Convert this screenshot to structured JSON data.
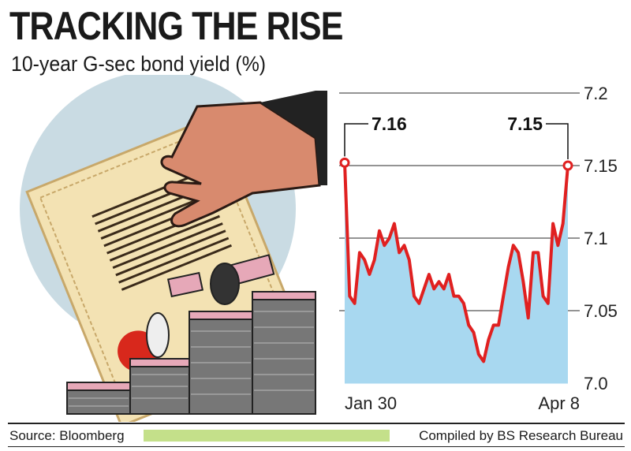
{
  "header": {
    "title": "TRACKING THE RISE",
    "subtitle": "10-year G-sec bond yield (%)"
  },
  "footer": {
    "source": "Source: Bloomberg",
    "credit": "Compiled by BS Research Bureau"
  },
  "colors": {
    "area_fill": "#a8d8f0",
    "line": "#e02020",
    "footer_bar": "#c4e08a"
  },
  "illustration": {
    "description_icon": "hand-certificate-cash-stacks-icon"
  },
  "chart_data": {
    "type": "area",
    "title": "TRACKING THE RISE",
    "subtitle": "10-year G-sec bond yield (%)",
    "xlabel": "",
    "ylabel": "",
    "x_tick_labels": [
      "Jan 30",
      "Apr 8"
    ],
    "y_ticks": [
      7.0,
      7.05,
      7.1,
      7.15,
      7.2
    ],
    "y_tick_labels": [
      "7.0",
      "7.05",
      "7.1",
      "7.15",
      "7.2"
    ],
    "ylim": [
      7.0,
      7.2
    ],
    "grid": "horizontal",
    "y_axis_position": "right",
    "annotations": [
      {
        "text": "7.16",
        "point": "first"
      },
      {
        "text": "7.15",
        "point": "last"
      }
    ],
    "series": [
      {
        "values": [
          7.152,
          7.06,
          7.055,
          7.09,
          7.085,
          7.075,
          7.085,
          7.105,
          7.095,
          7.1,
          7.11,
          7.09,
          7.095,
          7.085,
          7.06,
          7.055,
          7.065,
          7.075,
          7.065,
          7.07,
          7.065,
          7.075,
          7.06,
          7.06,
          7.055,
          7.04,
          7.035,
          7.02,
          7.015,
          7.03,
          7.04,
          7.04,
          7.06,
          7.08,
          7.095,
          7.09,
          7.07,
          7.045,
          7.09,
          7.09,
          7.06,
          7.055,
          7.11,
          7.095,
          7.11,
          7.15
        ]
      }
    ]
  }
}
